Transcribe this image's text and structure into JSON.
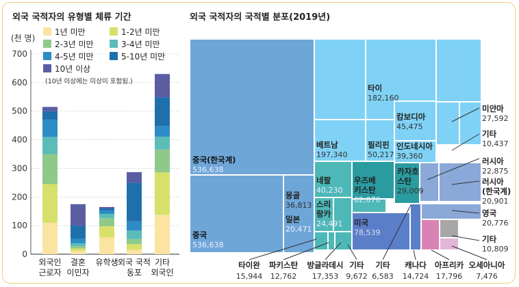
{
  "chart_data": [
    {
      "type": "bar",
      "stacked": true,
      "title": "외국 국적자의 유형별 체류 기간",
      "ylabel": "(천 명)",
      "ylim": [
        0,
        700
      ],
      "yticks": [
        0,
        100,
        200,
        300,
        400,
        500,
        600,
        700
      ],
      "categories": [
        [
          "외국인",
          "근로자"
        ],
        [
          "결혼",
          "이민자"
        ],
        [
          "유학생"
        ],
        [
          "외국 국적",
          "동포"
        ],
        [
          "기타",
          "외국인"
        ]
      ],
      "series": [
        {
          "name": "1년 미만",
          "color": "#fbe3a1",
          "values": [
            110,
            12,
            58,
            15,
            138
          ]
        },
        {
          "name": "1-2년 미만",
          "color": "#d7e06b",
          "values": [
            135,
            8,
            40,
            20,
            148
          ]
        },
        {
          "name": "2-3년 미만",
          "color": "#8fc98a",
          "values": [
            105,
            8,
            28,
            18,
            80
          ]
        },
        {
          "name": "3-4년 미만",
          "color": "#5bbcb8",
          "values": [
            60,
            10,
            15,
            30,
            45
          ]
        },
        {
          "name": "4-5년 미만",
          "color": "#2d8bc6",
          "values": [
            60,
            17,
            12,
            32,
            38
          ]
        },
        {
          "name": "5-10년 미만",
          "color": "#1f6fad",
          "values": [
            30,
            45,
            7,
            135,
            100
          ]
        },
        {
          "name": "10년 이상",
          "color": "#5b5da3",
          "values": [
            15,
            75,
            5,
            37,
            81
          ]
        }
      ],
      "legend_note": "(10년 이상에는 미상이 포함됨.)",
      "legend_position": "top"
    },
    {
      "type": "treemap",
      "title": "외국 국적자의 국적별 분포(2019년)",
      "items": [
        {
          "name": "중국(한국계)",
          "value": "536,638"
        },
        {
          "name": "중국",
          "value": "536,638"
        },
        {
          "name": "타이",
          "value": "182,160"
        },
        {
          "name": "베트남",
          "value": "197,340"
        },
        {
          "name": "필리핀",
          "value": "50,217"
        },
        {
          "name": "캄보디아",
          "value": "45,475"
        },
        {
          "name": "인도네시아",
          "value": "39,360"
        },
        {
          "name": "미얀마",
          "value": "27,592"
        },
        {
          "name": "기타",
          "value": "10,437"
        },
        {
          "name": "러시아",
          "value": "22,875"
        },
        {
          "name": "러시아 (한국계)",
          "value": "20,901"
        },
        {
          "name": "영국",
          "value": "20,776"
        },
        {
          "name": "기타",
          "value": "10,809"
        },
        {
          "name": "네팔",
          "value": "40,230"
        },
        {
          "name": "우즈베키스탄",
          "value": "62,076"
        },
        {
          "name": "카자흐스탄",
          "value": "29,009"
        },
        {
          "name": "몽골",
          "value": "36,813"
        },
        {
          "name": "스리랑카",
          "value": "24,491"
        },
        {
          "name": "일본",
          "value": "20,471"
        },
        {
          "name": "미국",
          "value": "78,539"
        },
        {
          "name": "타이완",
          "value": "15,944"
        },
        {
          "name": "파키스탄",
          "value": "12,762"
        },
        {
          "name": "방글라데시",
          "value": "17,353"
        },
        {
          "name": "기타",
          "value": "9,672"
        },
        {
          "name": "기타",
          "value": "6,583"
        },
        {
          "name": "캐나다",
          "value": "14,724"
        },
        {
          "name": "아프리카",
          "value": "17,796"
        },
        {
          "name": "오세아니아",
          "value": "7,476"
        }
      ]
    }
  ]
}
